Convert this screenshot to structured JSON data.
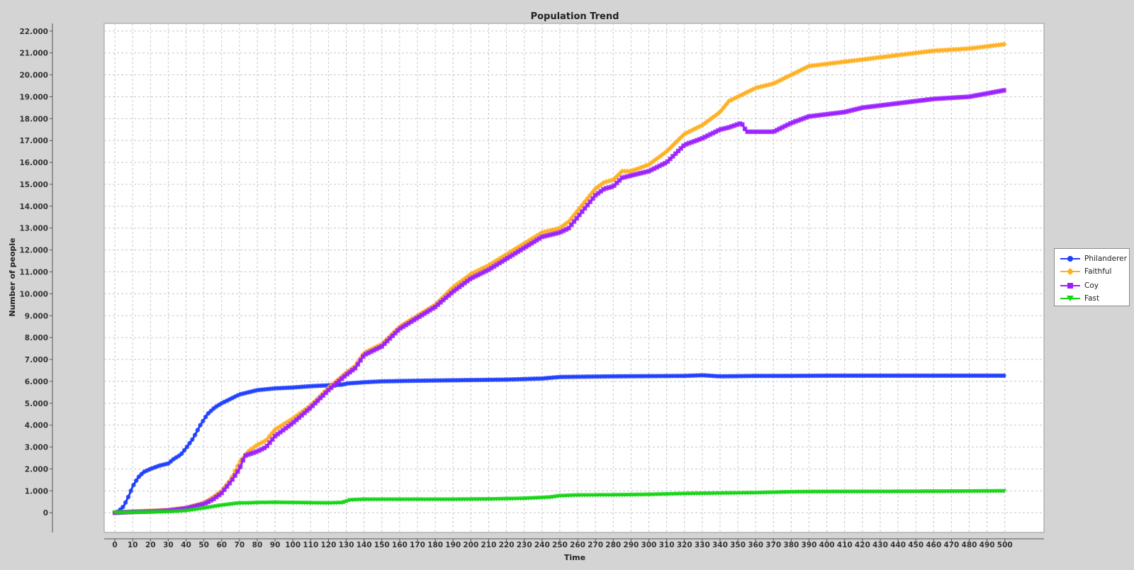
{
  "chart_data": {
    "type": "line",
    "title": "Population Trend",
    "xlabel": "Time",
    "ylabel": "Number of people",
    "xlim": [
      -6,
      522
    ],
    "ylim": [
      -900,
      22350
    ],
    "x_ticks": [
      0,
      10,
      20,
      30,
      40,
      50,
      60,
      70,
      80,
      90,
      100,
      110,
      120,
      130,
      140,
      150,
      160,
      170,
      180,
      190,
      200,
      210,
      220,
      230,
      240,
      250,
      260,
      270,
      280,
      290,
      300,
      310,
      320,
      330,
      340,
      350,
      360,
      370,
      380,
      390,
      400,
      410,
      420,
      430,
      440,
      450,
      460,
      470,
      480,
      490,
      500
    ],
    "x_tick_labels": [
      "0",
      "10",
      "20",
      "30",
      "40",
      "50",
      "60",
      "70",
      "80",
      "90",
      "100",
      "110",
      "120",
      "130",
      "140",
      "150",
      "160",
      "170",
      "180",
      "190",
      "200",
      "210",
      "220",
      "230",
      "240",
      "250",
      "260",
      "270",
      "280",
      "290",
      "300",
      "310",
      "320",
      "330",
      "340",
      "350",
      "360",
      "370",
      "380",
      "390",
      "400",
      "410",
      "420",
      "430",
      "440",
      "450",
      "460",
      "470",
      "480",
      "490",
      "500"
    ],
    "y_ticks": [
      0,
      1000,
      2000,
      3000,
      4000,
      5000,
      6000,
      7000,
      8000,
      9000,
      10000,
      11000,
      12000,
      13000,
      14000,
      15000,
      16000,
      17000,
      18000,
      19000,
      20000,
      21000,
      22000
    ],
    "y_tick_labels": [
      "0",
      "1.000",
      "2.000",
      "3.000",
      "4.000",
      "5.000",
      "6.000",
      "7.000",
      "8.000",
      "9.000",
      "10.000",
      "11.000",
      "12.000",
      "13.000",
      "14.000",
      "15.000",
      "16.000",
      "17.000",
      "18.000",
      "19.000",
      "20.000",
      "21.000",
      "22.000"
    ],
    "grid": true,
    "legend_position": "right",
    "series": [
      {
        "name": "Philanderer",
        "color": "#1f3fff",
        "marker": "circle",
        "points": [
          [
            0,
            0
          ],
          [
            2,
            60
          ],
          [
            5,
            300
          ],
          [
            8,
            800
          ],
          [
            10,
            1200
          ],
          [
            13,
            1600
          ],
          [
            16,
            1850
          ],
          [
            20,
            2000
          ],
          [
            25,
            2150
          ],
          [
            30,
            2250
          ],
          [
            33,
            2450
          ],
          [
            37,
            2650
          ],
          [
            40,
            2950
          ],
          [
            44,
            3400
          ],
          [
            48,
            4000
          ],
          [
            52,
            4500
          ],
          [
            56,
            4800
          ],
          [
            60,
            5000
          ],
          [
            65,
            5200
          ],
          [
            70,
            5400
          ],
          [
            75,
            5500
          ],
          [
            80,
            5600
          ],
          [
            90,
            5680
          ],
          [
            100,
            5720
          ],
          [
            110,
            5780
          ],
          [
            120,
            5820
          ],
          [
            128,
            5850
          ],
          [
            130,
            5900
          ],
          [
            140,
            5960
          ],
          [
            150,
            6000
          ],
          [
            170,
            6030
          ],
          [
            200,
            6060
          ],
          [
            220,
            6080
          ],
          [
            240,
            6130
          ],
          [
            250,
            6200
          ],
          [
            280,
            6230
          ],
          [
            320,
            6250
          ],
          [
            330,
            6280
          ],
          [
            340,
            6230
          ],
          [
            360,
            6250
          ],
          [
            380,
            6250
          ],
          [
            400,
            6260
          ],
          [
            450,
            6260
          ],
          [
            500,
            6260
          ]
        ]
      },
      {
        "name": "Faithful",
        "color": "#ffb020",
        "marker": "diamond",
        "points": [
          [
            0,
            0
          ],
          [
            10,
            50
          ],
          [
            20,
            80
          ],
          [
            30,
            130
          ],
          [
            40,
            220
          ],
          [
            50,
            450
          ],
          [
            55,
            700
          ],
          [
            60,
            1000
          ],
          [
            65,
            1500
          ],
          [
            70,
            2300
          ],
          [
            75,
            2800
          ],
          [
            80,
            3100
          ],
          [
            85,
            3300
          ],
          [
            90,
            3800
          ],
          [
            100,
            4300
          ],
          [
            110,
            4900
          ],
          [
            120,
            5700
          ],
          [
            130,
            6400
          ],
          [
            135,
            6700
          ],
          [
            140,
            7300
          ],
          [
            150,
            7700
          ],
          [
            160,
            8500
          ],
          [
            170,
            9000
          ],
          [
            180,
            9500
          ],
          [
            190,
            10300
          ],
          [
            200,
            10900
          ],
          [
            210,
            11300
          ],
          [
            220,
            11800
          ],
          [
            230,
            12300
          ],
          [
            240,
            12800
          ],
          [
            250,
            13000
          ],
          [
            255,
            13300
          ],
          [
            260,
            13800
          ],
          [
            270,
            14800
          ],
          [
            275,
            15100
          ],
          [
            280,
            15200
          ],
          [
            285,
            15600
          ],
          [
            290,
            15600
          ],
          [
            300,
            15900
          ],
          [
            310,
            16500
          ],
          [
            320,
            17300
          ],
          [
            325,
            17500
          ],
          [
            330,
            17700
          ],
          [
            340,
            18300
          ],
          [
            345,
            18800
          ],
          [
            350,
            19000
          ],
          [
            355,
            19200
          ],
          [
            360,
            19400
          ],
          [
            370,
            19600
          ],
          [
            380,
            20000
          ],
          [
            390,
            20400
          ],
          [
            400,
            20500
          ],
          [
            410,
            20600
          ],
          [
            420,
            20700
          ],
          [
            440,
            20900
          ],
          [
            460,
            21100
          ],
          [
            480,
            21200
          ],
          [
            500,
            21400
          ]
        ]
      },
      {
        "name": "Coy",
        "color": "#9a1fff",
        "marker": "square",
        "points": [
          [
            0,
            0
          ],
          [
            10,
            40
          ],
          [
            20,
            60
          ],
          [
            30,
            100
          ],
          [
            40,
            200
          ],
          [
            50,
            400
          ],
          [
            55,
            600
          ],
          [
            60,
            900
          ],
          [
            65,
            1400
          ],
          [
            70,
            2000
          ],
          [
            73,
            2600
          ],
          [
            80,
            2800
          ],
          [
            85,
            3000
          ],
          [
            90,
            3500
          ],
          [
            100,
            4100
          ],
          [
            110,
            4800
          ],
          [
            120,
            5600
          ],
          [
            130,
            6300
          ],
          [
            135,
            6600
          ],
          [
            140,
            7200
          ],
          [
            150,
            7600
          ],
          [
            160,
            8400
          ],
          [
            170,
            8900
          ],
          [
            180,
            9400
          ],
          [
            190,
            10100
          ],
          [
            200,
            10700
          ],
          [
            210,
            11100
          ],
          [
            220,
            11600
          ],
          [
            230,
            12100
          ],
          [
            240,
            12600
          ],
          [
            250,
            12800
          ],
          [
            255,
            13000
          ],
          [
            260,
            13500
          ],
          [
            270,
            14500
          ],
          [
            275,
            14800
          ],
          [
            280,
            14900
          ],
          [
            285,
            15300
          ],
          [
            290,
            15400
          ],
          [
            300,
            15600
          ],
          [
            310,
            16000
          ],
          [
            320,
            16800
          ],
          [
            330,
            17100
          ],
          [
            340,
            17500
          ],
          [
            345,
            17600
          ],
          [
            352,
            17800
          ],
          [
            355,
            17400
          ],
          [
            360,
            17400
          ],
          [
            370,
            17400
          ],
          [
            380,
            17800
          ],
          [
            390,
            18100
          ],
          [
            400,
            18200
          ],
          [
            410,
            18300
          ],
          [
            420,
            18500
          ],
          [
            440,
            18700
          ],
          [
            460,
            18900
          ],
          [
            480,
            19000
          ],
          [
            500,
            19300
          ]
        ]
      },
      {
        "name": "Fast",
        "color": "#14d414",
        "marker": "triangle-down",
        "points": [
          [
            0,
            0
          ],
          [
            10,
            10
          ],
          [
            20,
            20
          ],
          [
            30,
            30
          ],
          [
            40,
            80
          ],
          [
            50,
            200
          ],
          [
            60,
            330
          ],
          [
            70,
            430
          ],
          [
            75,
            430
          ],
          [
            80,
            450
          ],
          [
            90,
            460
          ],
          [
            100,
            450
          ],
          [
            110,
            440
          ],
          [
            120,
            430
          ],
          [
            128,
            450
          ],
          [
            132,
            570
          ],
          [
            140,
            600
          ],
          [
            150,
            600
          ],
          [
            170,
            600
          ],
          [
            190,
            600
          ],
          [
            210,
            610
          ],
          [
            230,
            640
          ],
          [
            245,
            700
          ],
          [
            250,
            760
          ],
          [
            260,
            790
          ],
          [
            280,
            800
          ],
          [
            300,
            820
          ],
          [
            320,
            860
          ],
          [
            340,
            880
          ],
          [
            360,
            900
          ],
          [
            380,
            940
          ],
          [
            400,
            950
          ],
          [
            450,
            960
          ],
          [
            500,
            980
          ]
        ]
      }
    ]
  }
}
